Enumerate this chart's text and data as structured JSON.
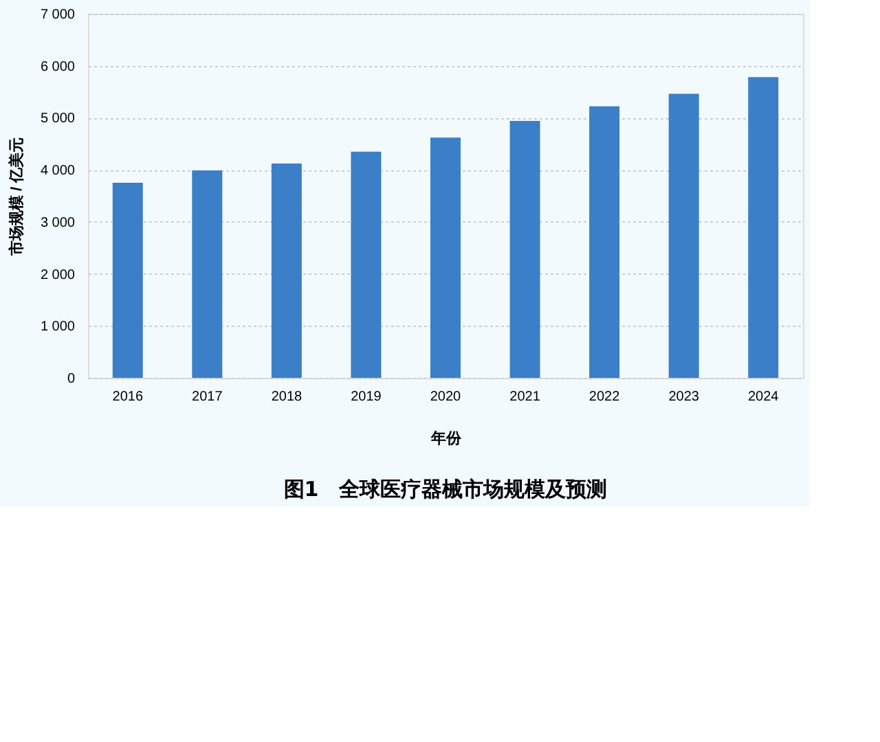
{
  "chart_data": {
    "type": "bar",
    "title": "图1　全球医疗器械市场规模及预测",
    "xlabel": "年份",
    "ylabel": "市场规模 / 亿美元",
    "categories": [
      "2016",
      "2017",
      "2018",
      "2019",
      "2020",
      "2021",
      "2022",
      "2023",
      "2024"
    ],
    "values": [
      3750,
      3990,
      4120,
      4350,
      4620,
      4940,
      5220,
      5460,
      5780
    ],
    "color": "#3a7fc8",
    "ylim": [
      0,
      7000
    ],
    "yticks": [
      0,
      {
        "value": 1000,
        "label": "1 000"
      },
      {
        "value": 2000,
        "label": "2 000"
      },
      {
        "value": 3000,
        "label": "3 000"
      },
      {
        "value": 4000,
        "label": "4 000"
      },
      {
        "value": 5000,
        "label": "5 000"
      },
      {
        "value": 6000,
        "label": "6 000"
      },
      {
        "value": 7000,
        "label": "7 000"
      }
    ],
    "grid": "y"
  }
}
